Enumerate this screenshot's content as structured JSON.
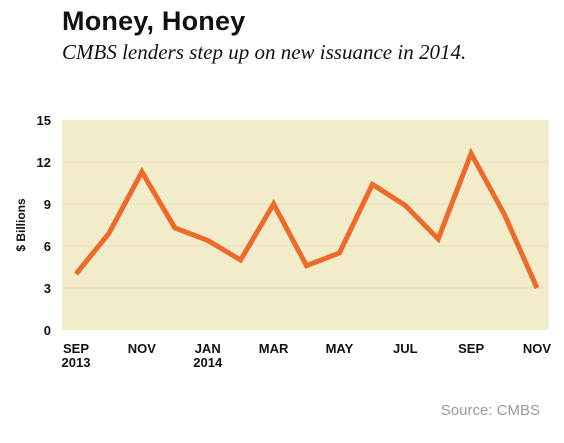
{
  "title": "Money, Honey",
  "subtitle": "CMBS lenders step up on new issuance in 2014.",
  "source": "Source: CMBS",
  "colors": {
    "plot_background": "#f3eccb",
    "line": "#ee6a2a",
    "grid": "#e8e0bb",
    "text": "#111111",
    "source_text": "#9a9a9a"
  },
  "chart_data": {
    "type": "line",
    "title": "Money, Honey",
    "subtitle": "CMBS lenders step up on new issuance in 2014.",
    "xlabel": "",
    "ylabel": "$ Billions",
    "ylim": [
      0,
      15
    ],
    "yticks": [
      0,
      3,
      6,
      9,
      12,
      15
    ],
    "grid": true,
    "categories": [
      "SEP 2013",
      "OCT 2013",
      "NOV 2013",
      "DEC 2013",
      "JAN 2014",
      "FEB 2014",
      "MAR 2014",
      "APR 2014",
      "MAY 2014",
      "JUN 2014",
      "JUL 2014",
      "AUG 2014",
      "SEP 2014",
      "OCT 2014",
      "NOV 2014"
    ],
    "x_tick_labels": [
      {
        "index": 0,
        "lines": [
          "SEP",
          "2013"
        ]
      },
      {
        "index": 2,
        "lines": [
          "NOV"
        ]
      },
      {
        "index": 4,
        "lines": [
          "JAN",
          "2014"
        ]
      },
      {
        "index": 6,
        "lines": [
          "MAR"
        ]
      },
      {
        "index": 8,
        "lines": [
          "MAY"
        ]
      },
      {
        "index": 10,
        "lines": [
          "JUL"
        ]
      },
      {
        "index": 12,
        "lines": [
          "SEP"
        ]
      },
      {
        "index": 14,
        "lines": [
          "NOV"
        ]
      }
    ],
    "series": [
      {
        "values": [
          4.0,
          6.9,
          11.3,
          7.3,
          6.4,
          5.0,
          9.0,
          4.6,
          5.5,
          10.4,
          8.9,
          6.5,
          12.6,
          8.3,
          3.0
        ]
      }
    ]
  }
}
